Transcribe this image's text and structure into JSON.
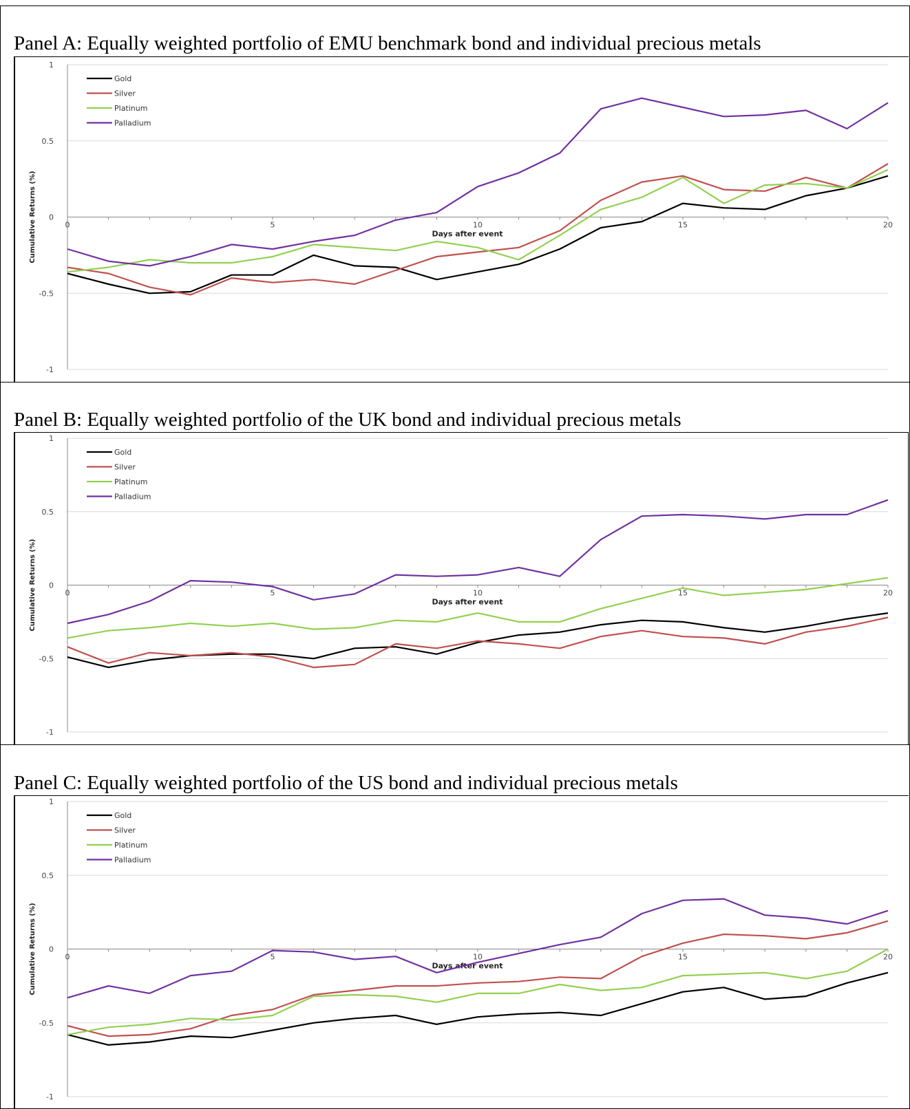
{
  "chart_data": [
    {
      "type": "line",
      "title": "Panel A: Equally weighted portfolio of EMU benchmark bond and individual precious metals",
      "xlabel": "Days after event",
      "ylabel": "Cumulative Returns (%)",
      "ylim": [
        -1,
        1
      ],
      "xlim": [
        0,
        20
      ],
      "x_ticks": [
        "0",
        "5",
        "10",
        "15",
        "20"
      ],
      "y_ticks": [
        "1",
        "0.5",
        "0",
        "-0.5",
        "-1"
      ],
      "legend_position": "top-left",
      "x": [
        0,
        1,
        2,
        3,
        4,
        5,
        6,
        7,
        8,
        9,
        10,
        11,
        12,
        13,
        14,
        15,
        16,
        17,
        18,
        19,
        20
      ],
      "series": [
        {
          "name": "Gold",
          "color": "#000000",
          "values": [
            -0.37,
            -0.44,
            -0.5,
            -0.49,
            -0.38,
            -0.38,
            -0.25,
            -0.32,
            -0.33,
            -0.41,
            -0.36,
            -0.31,
            -0.21,
            -0.07,
            -0.03,
            0.09,
            0.06,
            0.05,
            0.14,
            0.19,
            0.27
          ]
        },
        {
          "name": "Silver",
          "color": "#c0504d",
          "values": [
            -0.33,
            -0.37,
            -0.46,
            -0.51,
            -0.4,
            -0.43,
            -0.41,
            -0.44,
            -0.35,
            -0.26,
            -0.23,
            -0.2,
            -0.09,
            0.11,
            0.23,
            0.27,
            0.18,
            0.17,
            0.26,
            0.19,
            0.35
          ]
        },
        {
          "name": "Platinum",
          "color": "#92d050",
          "values": [
            -0.36,
            -0.33,
            -0.28,
            -0.3,
            -0.3,
            -0.26,
            -0.18,
            -0.2,
            -0.22,
            -0.16,
            -0.2,
            -0.28,
            -0.12,
            0.05,
            0.13,
            0.26,
            0.09,
            0.21,
            0.22,
            0.19,
            0.31
          ]
        },
        {
          "name": "Palladium",
          "color": "#7030a0",
          "values": [
            -0.21,
            -0.29,
            -0.32,
            -0.26,
            -0.18,
            -0.21,
            -0.16,
            -0.12,
            -0.02,
            0.03,
            0.2,
            0.29,
            0.42,
            0.71,
            0.78,
            0.72,
            0.66,
            0.67,
            0.7,
            0.58,
            0.75
          ]
        }
      ]
    },
    {
      "type": "line",
      "title": "Panel B: Equally weighted portfolio of the UK bond and individual precious metals",
      "xlabel": "Days after event",
      "ylabel": "Cumulative Returns (%)",
      "ylim": [
        -1,
        1
      ],
      "xlim": [
        0,
        20
      ],
      "x_ticks": [
        "0",
        "5",
        "10",
        "15",
        "20"
      ],
      "y_ticks": [
        "1",
        "0.5",
        "0",
        "-0.5",
        "-1"
      ],
      "legend_position": "top-left",
      "x": [
        0,
        1,
        2,
        3,
        4,
        5,
        6,
        7,
        8,
        9,
        10,
        11,
        12,
        13,
        14,
        15,
        16,
        17,
        18,
        19,
        20
      ],
      "series": [
        {
          "name": "Gold",
          "color": "#000000",
          "values": [
            -0.49,
            -0.56,
            -0.51,
            -0.48,
            -0.47,
            -0.47,
            -0.5,
            -0.43,
            -0.42,
            -0.47,
            -0.39,
            -0.34,
            -0.32,
            -0.27,
            -0.24,
            -0.25,
            -0.29,
            -0.32,
            -0.28,
            -0.23,
            -0.19
          ]
        },
        {
          "name": "Silver",
          "color": "#c0504d",
          "values": [
            -0.42,
            -0.53,
            -0.46,
            -0.48,
            -0.46,
            -0.49,
            -0.56,
            -0.54,
            -0.4,
            -0.43,
            -0.38,
            -0.4,
            -0.43,
            -0.35,
            -0.31,
            -0.35,
            -0.36,
            -0.4,
            -0.32,
            -0.28,
            -0.22
          ]
        },
        {
          "name": "Platinum",
          "color": "#92d050",
          "values": [
            -0.36,
            -0.31,
            -0.29,
            -0.26,
            -0.28,
            -0.26,
            -0.3,
            -0.29,
            -0.24,
            -0.25,
            -0.19,
            -0.25,
            -0.25,
            -0.16,
            -0.09,
            -0.02,
            -0.07,
            -0.05,
            -0.03,
            0.01,
            0.05
          ]
        },
        {
          "name": "Palladium",
          "color": "#7030a0",
          "values": [
            -0.26,
            -0.2,
            -0.11,
            0.03,
            0.02,
            -0.01,
            -0.1,
            -0.06,
            0.07,
            0.06,
            0.07,
            0.12,
            0.06,
            0.31,
            0.47,
            0.48,
            0.47,
            0.45,
            0.48,
            0.48,
            0.58
          ]
        }
      ]
    },
    {
      "type": "line",
      "title": "Panel C: Equally weighted portfolio of the US bond and individual precious metals",
      "xlabel": "Days after event",
      "ylabel": "Cumulative Returns (%)",
      "ylim": [
        -1,
        1
      ],
      "xlim": [
        0,
        20
      ],
      "x_ticks": [
        "0",
        "5",
        "10",
        "15",
        "20"
      ],
      "y_ticks": [
        "1",
        "0.5",
        "0",
        "-0.5",
        "-1"
      ],
      "legend_position": "top-left",
      "x": [
        0,
        1,
        2,
        3,
        4,
        5,
        6,
        7,
        8,
        9,
        10,
        11,
        12,
        13,
        14,
        15,
        16,
        17,
        18,
        19,
        20
      ],
      "series": [
        {
          "name": "Gold",
          "color": "#000000",
          "values": [
            -0.58,
            -0.65,
            -0.63,
            -0.59,
            -0.6,
            -0.55,
            -0.5,
            -0.47,
            -0.45,
            -0.51,
            -0.46,
            -0.44,
            -0.43,
            -0.45,
            -0.37,
            -0.29,
            -0.26,
            -0.34,
            -0.32,
            -0.23,
            -0.16
          ]
        },
        {
          "name": "Silver",
          "color": "#c0504d",
          "values": [
            -0.52,
            -0.59,
            -0.58,
            -0.54,
            -0.45,
            -0.41,
            -0.31,
            -0.28,
            -0.25,
            -0.25,
            -0.23,
            -0.22,
            -0.19,
            -0.2,
            -0.05,
            0.04,
            0.1,
            0.09,
            0.07,
            0.11,
            0.19
          ]
        },
        {
          "name": "Platinum",
          "color": "#92d050",
          "values": [
            -0.58,
            -0.53,
            -0.51,
            -0.47,
            -0.48,
            -0.45,
            -0.32,
            -0.31,
            -0.32,
            -0.36,
            -0.3,
            -0.3,
            -0.24,
            -0.28,
            -0.26,
            -0.18,
            -0.17,
            -0.16,
            -0.2,
            -0.15,
            0.0
          ]
        },
        {
          "name": "Palladium",
          "color": "#7030a0",
          "values": [
            -0.33,
            -0.25,
            -0.3,
            -0.18,
            -0.15,
            -0.01,
            -0.02,
            -0.07,
            -0.05,
            -0.16,
            -0.09,
            -0.03,
            0.03,
            0.08,
            0.24,
            0.33,
            0.34,
            0.23,
            0.21,
            0.17,
            0.26
          ]
        }
      ]
    }
  ]
}
